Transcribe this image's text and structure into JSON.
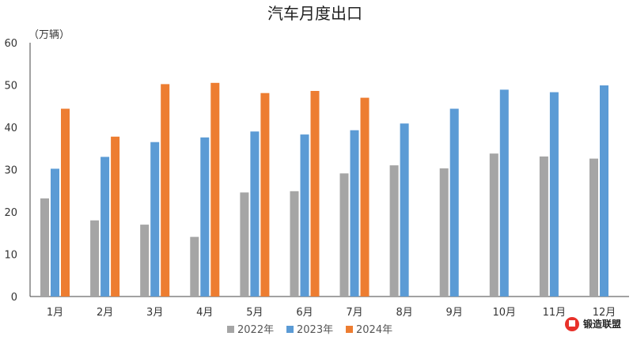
{
  "chart_data": {
    "type": "bar",
    "title": "汽车月度出口",
    "unit_label": "（万辆）",
    "ylim": [
      0,
      60
    ],
    "yticks": [
      0,
      10,
      20,
      30,
      40,
      50,
      60
    ],
    "categories": [
      "1月",
      "2月",
      "3月",
      "4月",
      "5月",
      "6月",
      "7月",
      "8月",
      "9月",
      "10月",
      "11月",
      "12月"
    ],
    "series": [
      {
        "name": "2022年",
        "color": "#a5a5a5",
        "values": [
          23.2,
          18,
          17,
          14.1,
          24.6,
          24.9,
          29.1,
          31,
          30.3,
          33.8,
          33.1,
          32.6
        ]
      },
      {
        "name": "2023年",
        "color": "#5b9bd5",
        "values": [
          30.2,
          33,
          36.5,
          37.6,
          39,
          38.3,
          39.3,
          40.9,
          44.4,
          48.9,
          48.3,
          49.9
        ]
      },
      {
        "name": "2024年",
        "color": "#ed7d31",
        "values": [
          44.4,
          37.8,
          50.2,
          50.5,
          48.1,
          48.6,
          47,
          null,
          null,
          null,
          null,
          null
        ]
      }
    ],
    "legend_position": "bottom",
    "grid": false
  },
  "watermark": {
    "text": "锻造联盟",
    "icon": "forge-alliance-logo-icon",
    "color": "#e8312a"
  }
}
